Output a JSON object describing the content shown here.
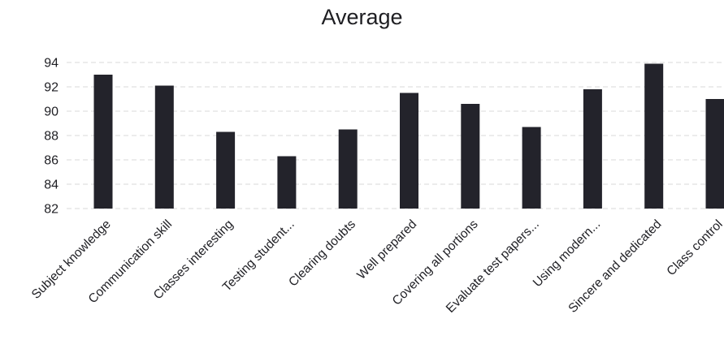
{
  "chart_data": {
    "type": "bar",
    "title": "Average",
    "xlabel": "",
    "ylabel": "",
    "ylim": [
      82,
      94
    ],
    "yticks": [
      82,
      84,
      86,
      88,
      90,
      92,
      94
    ],
    "grid": true,
    "categories": [
      "Subject knowledge",
      "Communication skill",
      "Classes interesting",
      "Testing student...",
      "Clearing doubts",
      "Well prepared",
      "Covering all portions",
      "Evaluate test papers...",
      "Using modern...",
      "Sincere and dedicated",
      "Class control"
    ],
    "values": [
      93.0,
      92.1,
      88.3,
      86.3,
      88.5,
      91.5,
      90.6,
      88.7,
      91.8,
      93.9,
      91.0
    ],
    "colors": {
      "bar": "#23232b",
      "grid": "#d8d8d8",
      "text": "#1f1f24"
    }
  }
}
